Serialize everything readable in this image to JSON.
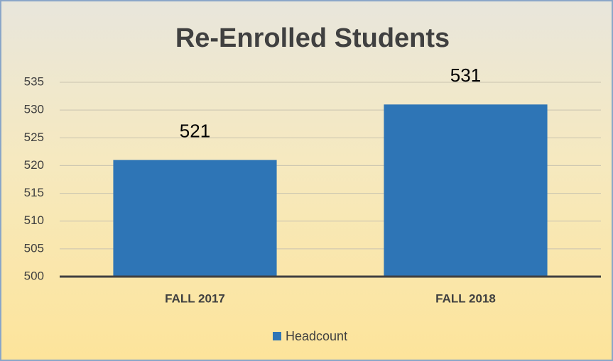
{
  "chart_data": {
    "type": "bar",
    "title": "Re-Enrolled Students",
    "categories": [
      "FALL 2017",
      "FALL 2018"
    ],
    "series": [
      {
        "name": "Headcount",
        "color": "#2e75b6",
        "values": [
          521,
          531
        ]
      }
    ],
    "ylim": [
      500,
      535
    ],
    "yticks": [
      500,
      505,
      510,
      515,
      520,
      525,
      530,
      535
    ],
    "grid": true,
    "legend": "bottom"
  }
}
